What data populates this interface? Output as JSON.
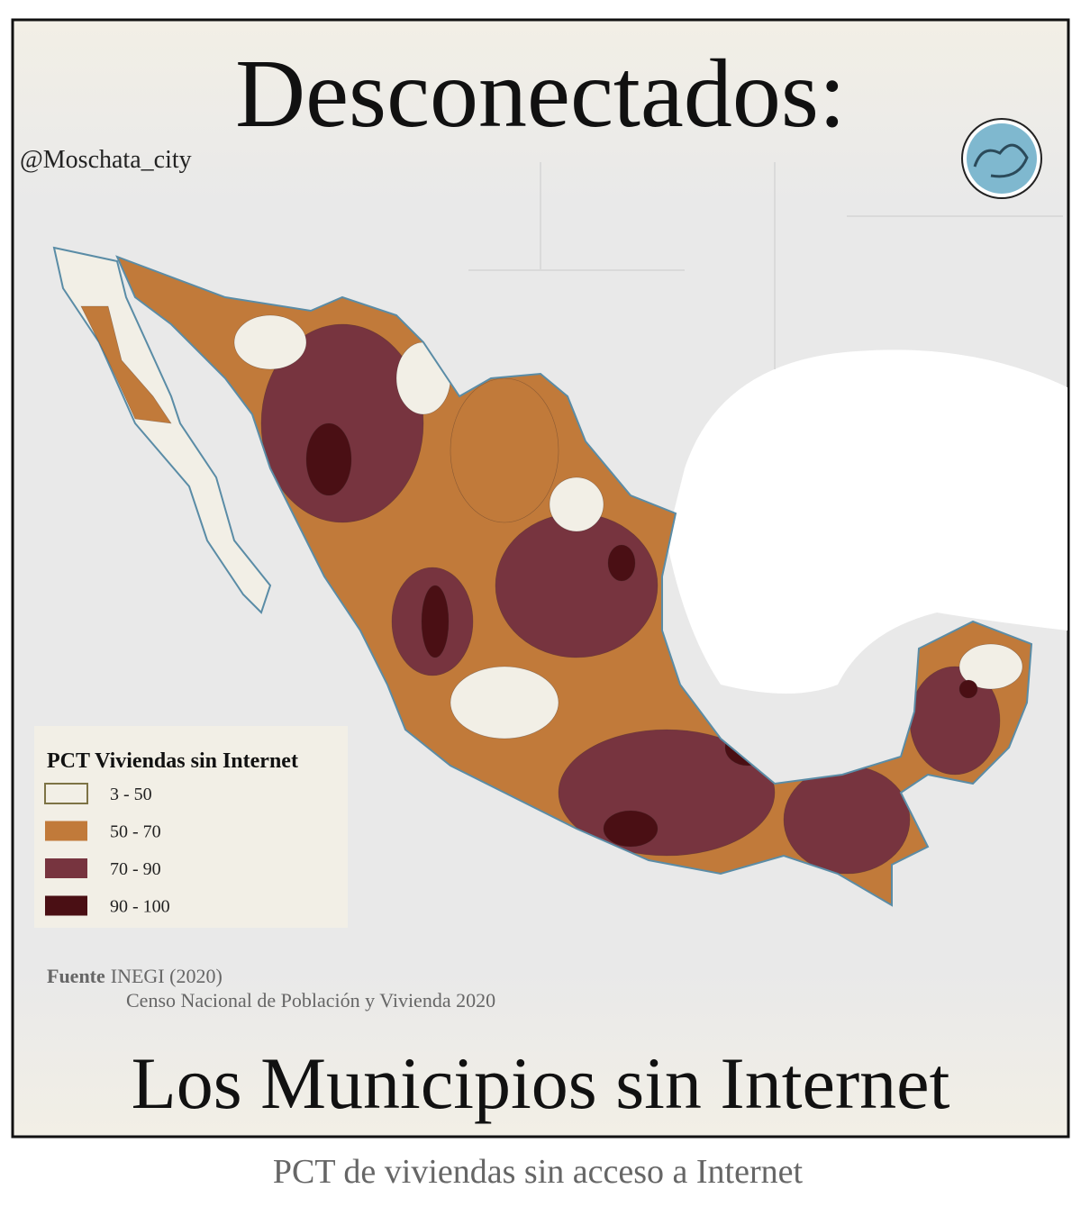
{
  "header": {
    "title": "Desconectados:",
    "handle": "@Moschata_city"
  },
  "legend": {
    "title": "PCT Viviendas sin Internet",
    "items": [
      {
        "label": "3 - 50",
        "color": "#f2efe6",
        "stroke": "#7d7345"
      },
      {
        "label": "50 - 70",
        "color": "#c17a3a"
      },
      {
        "label": "70 - 90",
        "color": "#77343f"
      },
      {
        "label": "90 - 100",
        "color": "#4a0f14"
      }
    ]
  },
  "source": {
    "label": "Fuente",
    "name": "INEGI (2020)",
    "detail": "Censo Nacional de Población y Vivienda 2020"
  },
  "footer": {
    "title": "Los Municipios sin Internet",
    "caption": "PCT de viviendas sin acceso a Internet"
  }
}
